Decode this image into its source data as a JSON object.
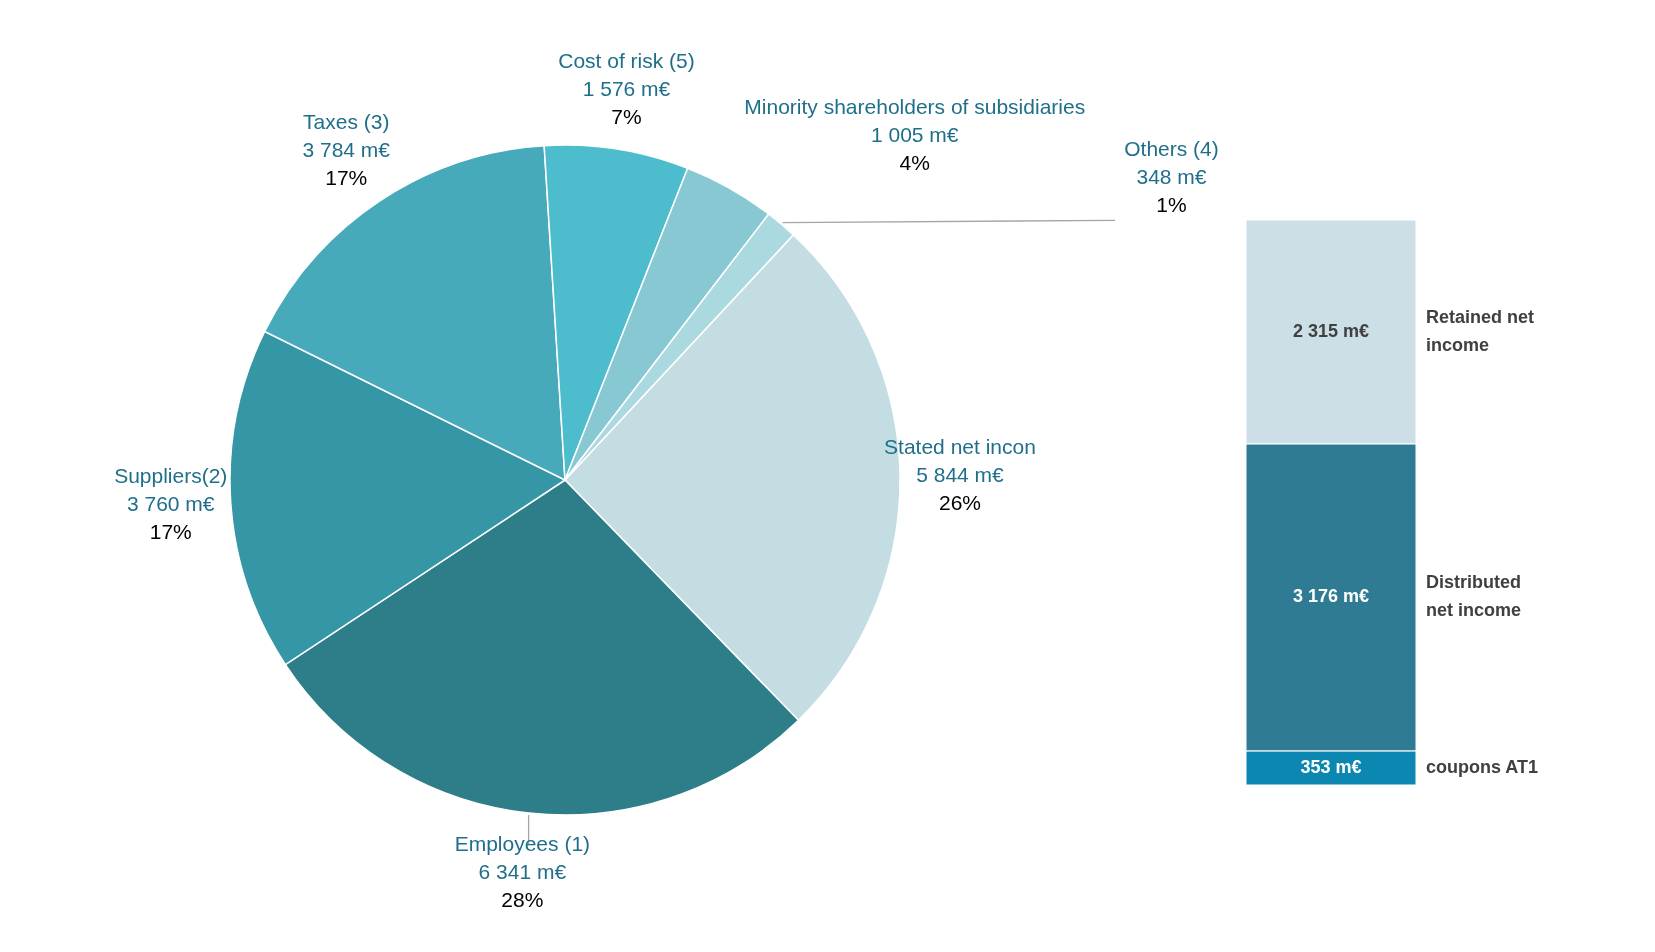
{
  "chart_data": [
    {
      "type": "pie",
      "categories": [
        "Stated net incon",
        "Employees (1)",
        "Suppliers(2)",
        "Taxes (3)",
        "Cost of risk (5)",
        "Minority shareholders of subsidiaries",
        "Others (4)"
      ],
      "values": [
        5844,
        6341,
        3760,
        3784,
        1576,
        1005,
        348
      ],
      "value_labels": [
        "5 844 m€\n26%",
        "6 341 m€\n28%",
        "3 760 m€\n17%",
        "3 784 m€\n17%",
        "1 576 m€\n7%",
        "1 005 m€\n4%",
        "348 m€\n1%"
      ],
      "colors": [
        "#c3dde3",
        "#2d7e89",
        "#3596a6",
        "#46aabb",
        "#4dbccc",
        "#87c8d3",
        "#aad9e0"
      ]
    },
    {
      "type": "bar",
      "stacked": true,
      "categories": [
        null
      ],
      "series": [
        {
          "name": "coupons AT1",
          "color": "#0b87b1",
          "values": [
            353
          ],
          "value_labels": [
            "353 m€"
          ]
        },
        {
          "name": "Distributed net income",
          "color": "#2f7b94",
          "values": [
            3176
          ],
          "value_labels": [
            "3 176 m€"
          ]
        },
        {
          "name": "Retained net income",
          "color": "#cddfe6",
          "values": [
            2315
          ],
          "value_labels": [
            "2 315 m€"
          ]
        }
      ]
    }
  ]
}
